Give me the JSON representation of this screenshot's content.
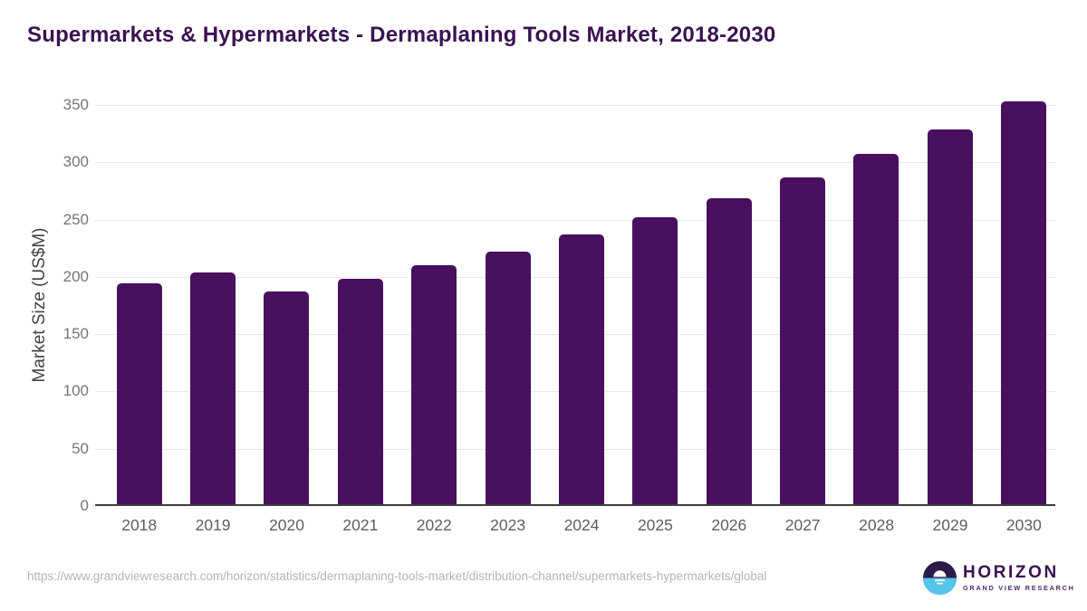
{
  "title": "Supermarkets & Hypermarkets - Dermaplaning Tools Market, 2018-2030",
  "chart_data": {
    "type": "bar",
    "title": "Supermarkets & Hypermarkets - Dermaplaning Tools Market, 2018-2030",
    "categories": [
      "2018",
      "2019",
      "2020",
      "2021",
      "2022",
      "2023",
      "2024",
      "2025",
      "2026",
      "2027",
      "2028",
      "2029",
      "2030"
    ],
    "values": [
      194,
      204,
      187,
      198,
      210,
      222,
      237,
      252,
      269,
      287,
      307,
      329,
      353
    ],
    "xlabel": "",
    "ylabel": "Market Size (US$M)",
    "ylim": [
      0,
      350
    ],
    "ytick_step": 50,
    "yticks": [
      "0",
      "50",
      "100",
      "150",
      "200",
      "250",
      "300",
      "350"
    ],
    "grid": true,
    "legend": "none",
    "bar_color": "#48105e"
  },
  "footer": {
    "source_url": "https://www.grandviewresearch.com/horizon/statistics/dermaplaning-tools-market/distribution-channel/supermarkets-hypermarkets/global",
    "logo": {
      "brand": "HORIZON",
      "sub_brand": "GRAND VIEW RESEARCH"
    }
  },
  "colors": {
    "bar": "#48105e",
    "title": "#3a1252",
    "grid": "#e8e8e8",
    "axis": "#3d3d3d",
    "y_tick_text": "#757575",
    "x_tick_text": "#5e5e5e",
    "url_text": "#b4b4b4",
    "logo_dark_half": "#2b1a4a",
    "logo_blue_half": "#56c5ea",
    "logo_text": "#3b1053"
  }
}
